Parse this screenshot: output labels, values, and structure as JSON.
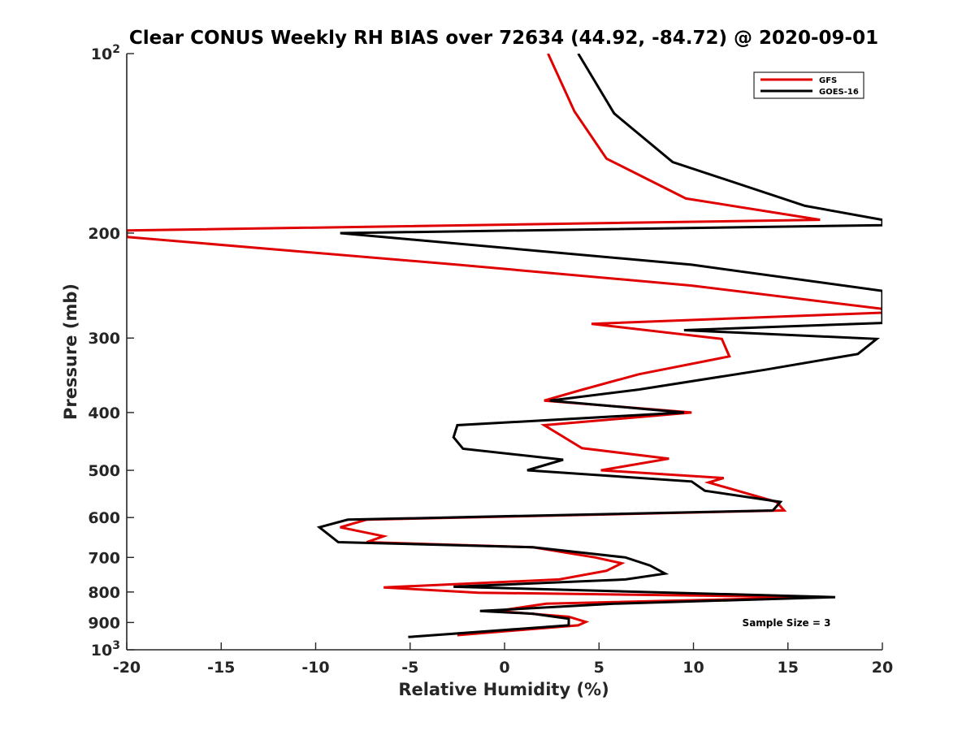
{
  "chart_data": {
    "type": "line",
    "title": "Clear CONUS Weekly RH BIAS over 72634 (44.92, -84.72) @ 2020-09-01",
    "xlabel": "Relative Humidity (%)",
    "ylabel": "Pressure (mb)",
    "xlim": [
      -20,
      20
    ],
    "ylim": [
      100,
      1000
    ],
    "yscale": "log",
    "yreverse": true,
    "xticks": [
      -20,
      -15,
      -10,
      -5,
      0,
      5,
      10,
      15,
      20
    ],
    "xtick_labels": [
      "-20",
      "-15",
      "-10",
      "-5",
      "0",
      "5",
      "10",
      "15",
      "20"
    ],
    "yticks": [
      {
        "value": 100,
        "label": "10",
        "sup": "2"
      },
      {
        "value": 200,
        "label": "200",
        "sup": ""
      },
      {
        "value": 300,
        "label": "300",
        "sup": ""
      },
      {
        "value": 400,
        "label": "400",
        "sup": ""
      },
      {
        "value": 500,
        "label": "500",
        "sup": ""
      },
      {
        "value": 600,
        "label": "600",
        "sup": ""
      },
      {
        "value": 700,
        "label": "700",
        "sup": ""
      },
      {
        "value": 800,
        "label": "800",
        "sup": ""
      },
      {
        "value": 900,
        "label": "900",
        "sup": ""
      },
      {
        "value": 1000,
        "label": "10",
        "sup": "3"
      }
    ],
    "legend_position": "top-right",
    "annotation": "Sample Size = 3",
    "series": [
      {
        "name": "GFS",
        "color": "#e00000",
        "points": [
          [
            2.3,
            100
          ],
          [
            3.7,
            125
          ],
          [
            5.4,
            150
          ],
          [
            9.6,
            175
          ],
          [
            16.7,
            190
          ],
          [
            -20.0,
            198
          ],
          [
            -20.0,
            203
          ],
          [
            -2.5,
            226
          ],
          [
            9.9,
            245
          ],
          [
            20.0,
            268
          ],
          [
            20.0,
            272
          ],
          [
            4.6,
            284
          ],
          [
            11.5,
            301
          ],
          [
            11.9,
            322
          ],
          [
            7.1,
            345
          ],
          [
            4.0,
            367
          ],
          [
            2.1,
            382
          ],
          [
            9.9,
            400
          ],
          [
            2.1,
            420
          ],
          [
            4.1,
            459
          ],
          [
            8.7,
            478
          ],
          [
            5.1,
            500
          ],
          [
            11.6,
            515
          ],
          [
            10.8,
            524
          ],
          [
            14.4,
            565
          ],
          [
            14.8,
            584
          ],
          [
            -7.3,
            605
          ],
          [
            -8.7,
            623
          ],
          [
            -6.4,
            645
          ],
          [
            -7.3,
            660
          ],
          [
            1.5,
            673
          ],
          [
            4.8,
            700
          ],
          [
            6.2,
            716
          ],
          [
            5.4,
            737
          ],
          [
            2.9,
            762
          ],
          [
            -6.4,
            786
          ],
          [
            -1.4,
            802
          ],
          [
            16.7,
            816
          ],
          [
            2.2,
            837
          ],
          [
            -0.4,
            861
          ],
          [
            3.4,
            880
          ],
          [
            4.3,
            898
          ],
          [
            3.9,
            910
          ],
          [
            -2.5,
            945
          ]
        ]
      },
      {
        "name": "GOES-16",
        "color": "#000000",
        "points": [
          [
            3.9,
            100
          ],
          [
            5.8,
            126
          ],
          [
            8.9,
            152
          ],
          [
            15.9,
            180
          ],
          [
            20.0,
            190
          ],
          [
            20.0,
            194
          ],
          [
            -8.7,
            200
          ],
          [
            9.9,
            226
          ],
          [
            20.0,
            250
          ],
          [
            20.0,
            283
          ],
          [
            9.5,
            291
          ],
          [
            19.7,
            301
          ],
          [
            18.7,
            319
          ],
          [
            13.8,
            339
          ],
          [
            7.1,
            366
          ],
          [
            2.4,
            382
          ],
          [
            9.5,
            400
          ],
          [
            -2.5,
            420
          ],
          [
            -2.7,
            440
          ],
          [
            -2.2,
            460
          ],
          [
            3.1,
            480
          ],
          [
            1.2,
            500
          ],
          [
            9.9,
            522
          ],
          [
            10.6,
            541
          ],
          [
            14.6,
            565
          ],
          [
            14.2,
            584
          ],
          [
            -8.3,
            605
          ],
          [
            -9.8,
            623
          ],
          [
            -8.8,
            660
          ],
          [
            1.5,
            673
          ],
          [
            6.4,
            700
          ],
          [
            7.7,
            722
          ],
          [
            8.5,
            745
          ],
          [
            6.4,
            762
          ],
          [
            -2.7,
            784
          ],
          [
            17.5,
            816
          ],
          [
            5.8,
            837
          ],
          [
            -1.3,
            861
          ],
          [
            1.5,
            870
          ],
          [
            3.4,
            887
          ],
          [
            3.4,
            910
          ],
          [
            -5.1,
            952
          ]
        ]
      }
    ]
  }
}
